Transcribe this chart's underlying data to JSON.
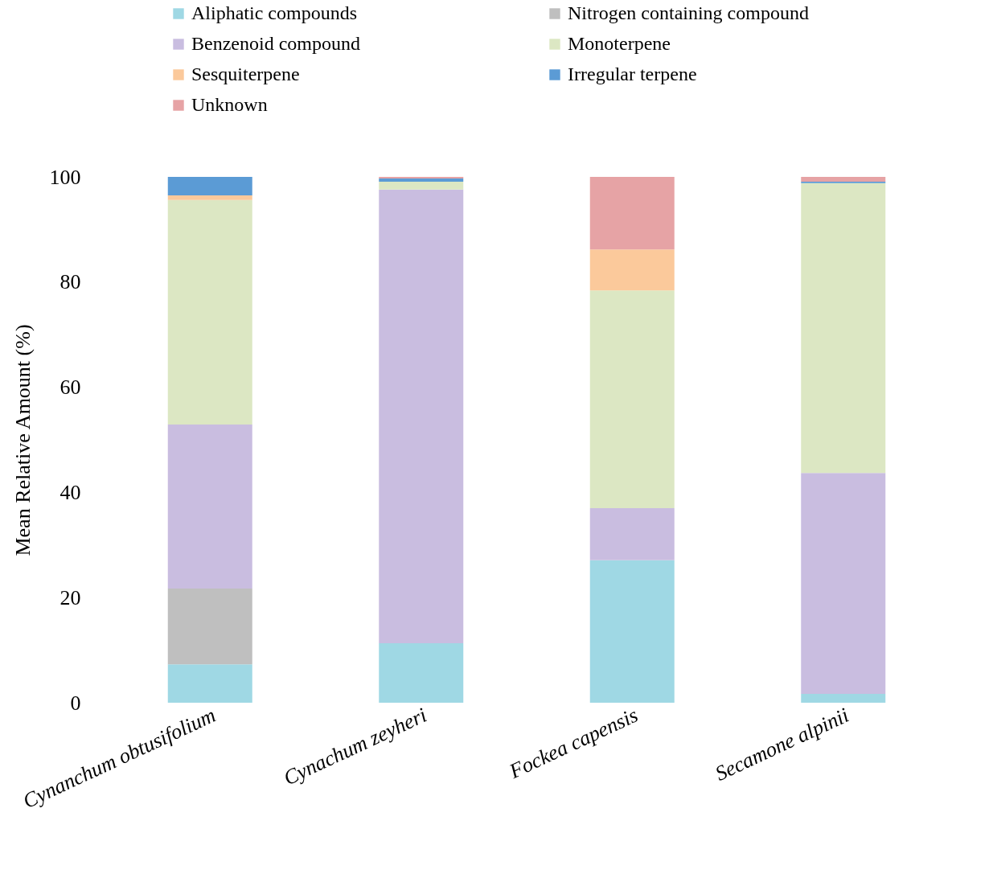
{
  "chart_data": {
    "type": "bar",
    "stacked": true,
    "ylabel": "Mean Relative Amount (%)",
    "categories": [
      "Cynanchum obtusifolium",
      "Cynachum zeyheri",
      "Fockea capensis",
      "Secamone alpinii"
    ],
    "ylim": [
      0,
      100
    ],
    "yticks": [
      0,
      20,
      40,
      60,
      80,
      100
    ],
    "legend": "top",
    "grid": false,
    "series": [
      {
        "name": "Aliphatic compounds",
        "color": "#9fd8e4",
        "values": [
          7.3,
          11.3,
          27.1,
          1.7
        ]
      },
      {
        "name": "Nitrogen containing compound",
        "color": "#bfbfbf",
        "values": [
          14.4,
          0,
          0,
          0
        ]
      },
      {
        "name": "Benzenoid compound",
        "color": "#c9bde0",
        "values": [
          31.2,
          86.3,
          9.9,
          42.0
        ]
      },
      {
        "name": "Monoterpene",
        "color": "#dce7c3",
        "values": [
          42.7,
          1.5,
          41.4,
          55.1
        ]
      },
      {
        "name": "Sesquiterpene",
        "color": "#fbc99b",
        "values": [
          0.9,
          0,
          7.8,
          0
        ]
      },
      {
        "name": "Irregular terpene",
        "color": "#5b9bd5",
        "values": [
          3.5,
          0.6,
          0,
          0.3
        ]
      },
      {
        "name": "Unknown",
        "color": "#e6a3a5",
        "values": [
          0,
          0.3,
          13.8,
          0.9
        ]
      }
    ]
  }
}
